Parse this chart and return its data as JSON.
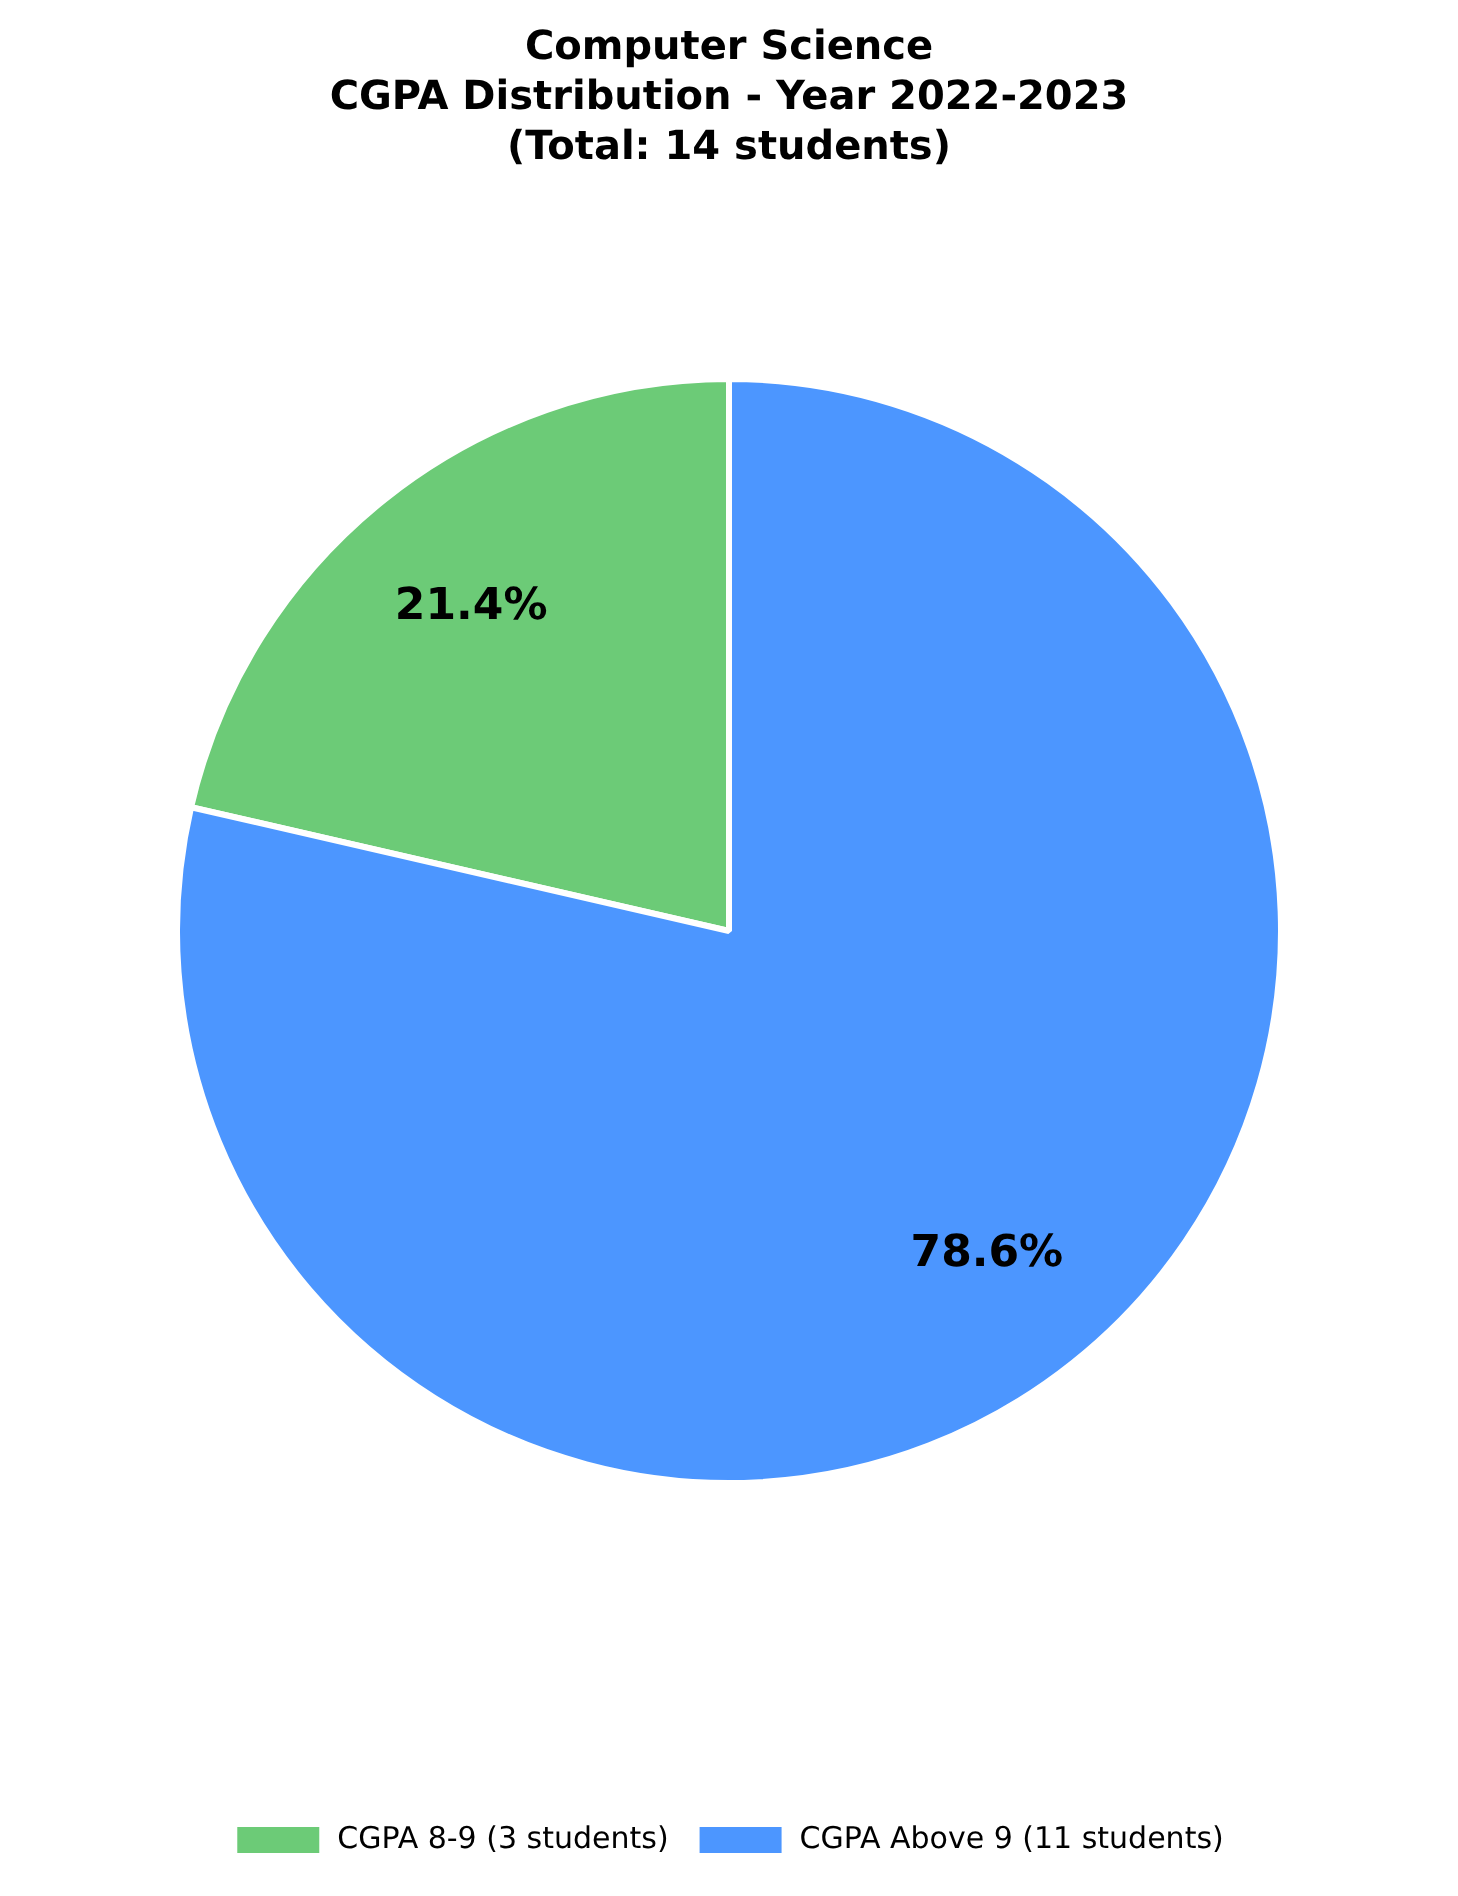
{
  "chart_data": {
    "type": "pie",
    "title": "Computer Science\nCGPA Distribution - Year 2022-2023\n(Total: 14 students)",
    "categories": [
      "CGPA 8-9 (3 students)",
      "CGPA Above 9 (11 students)"
    ],
    "values": [
      21.4,
      78.6
    ],
    "colors": [
      "#6ccb77",
      "#4c96ff"
    ],
    "value_labels": [
      "21.4%",
      "78.6%"
    ],
    "legend": "bottom"
  }
}
